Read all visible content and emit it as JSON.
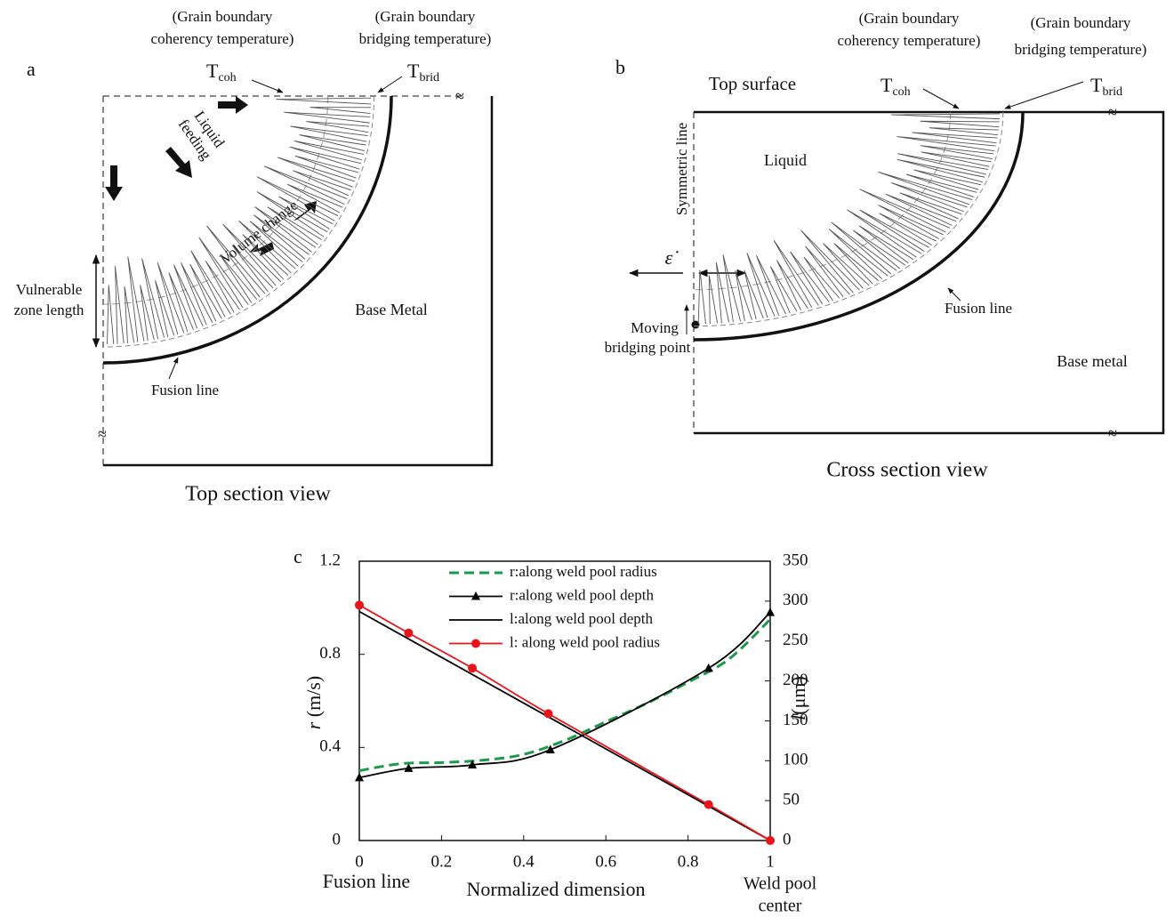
{
  "panels": {
    "a": {
      "label": "a",
      "coh_note": [
        "(Grain boundary",
        "coherency temperature)"
      ],
      "brid_note": [
        "(Grain boundary",
        "bridging temperature)"
      ],
      "t_coh": {
        "main": "T",
        "sub": "coh"
      },
      "t_brid": {
        "main": "T",
        "sub": "brid"
      },
      "liquid_feeding": [
        "Liquid",
        "feeding"
      ],
      "volume_change": "Volume change",
      "vulnerable": [
        "Vulnerable",
        "zone length"
      ],
      "base_metal": "Base Metal",
      "fusion_line": "Fusion line",
      "caption": "Top section view"
    },
    "b": {
      "label": "b",
      "coh_note": [
        "(Grain boundary",
        "coherency temperature)"
      ],
      "brid_note": [
        "(Grain boundary",
        "bridging temperature)"
      ],
      "t_coh": {
        "main": "T",
        "sub": "coh"
      },
      "t_brid": {
        "main": "T",
        "sub": "brid"
      },
      "top_surface": "Top surface",
      "liquid": "Liquid",
      "symmetric_line": "Symmetric line",
      "strain_rate": "ε̇",
      "moving_point": [
        "Moving",
        "bridging point"
      ],
      "fusion_line": "Fusion line",
      "base_metal": "Base metal",
      "caption": "Cross section view"
    }
  },
  "chart_data": {
    "type": "line",
    "panel_label": "c",
    "xlabel": "Normalized dimension",
    "ylabel_var": "r",
    "ylabel_unit": "(m/s)",
    "y2label_var": "l",
    "y2label_unit": "(μm)",
    "left_note": "Fusion line",
    "right_note": [
      "Weld pool",
      "center"
    ],
    "xlim": [
      0,
      1
    ],
    "xticks": [
      0,
      0.2,
      0.4,
      0.6,
      0.8,
      1
    ],
    "ylim": [
      0,
      1.2
    ],
    "yticks": [
      0,
      0.4,
      0.8,
      1.2
    ],
    "y2lim": [
      0,
      350
    ],
    "y2ticks": [
      0,
      50,
      100,
      150,
      200,
      250,
      300,
      350
    ],
    "legend": "upper center",
    "series": [
      {
        "name": "r:along weld pool radius",
        "color": "#1a9a4a",
        "dash": true,
        "marker": "none",
        "axis": "y",
        "x": [
          0,
          0.1,
          0.2,
          0.3,
          0.4,
          0.5,
          0.6,
          0.7,
          0.8,
          0.9,
          1
        ],
        "values": [
          0.3,
          0.33,
          0.335,
          0.345,
          0.37,
          0.43,
          0.51,
          0.59,
          0.68,
          0.78,
          0.95
        ]
      },
      {
        "name": "r:along weld pool depth",
        "color": "#000000",
        "dash": false,
        "marker": "triangle",
        "axis": "y",
        "x": [
          0,
          0.12,
          0.275,
          0.465,
          0.85,
          1
        ],
        "values": [
          0.27,
          0.31,
          0.325,
          0.39,
          0.74,
          0.98
        ]
      },
      {
        "name": "l:along weld pool depth",
        "color": "#000000",
        "dash": false,
        "marker": "none",
        "axis": "y2",
        "x": [
          0,
          1
        ],
        "values": [
          287,
          0
        ]
      },
      {
        "name": "l: along weld pool radius",
        "color": "#e8141a",
        "dash": false,
        "marker": "circle",
        "axis": "y2",
        "x": [
          0,
          0.12,
          0.275,
          0.46,
          0.85,
          1
        ],
        "values": [
          295,
          260,
          216,
          159,
          45,
          0
        ]
      }
    ]
  }
}
